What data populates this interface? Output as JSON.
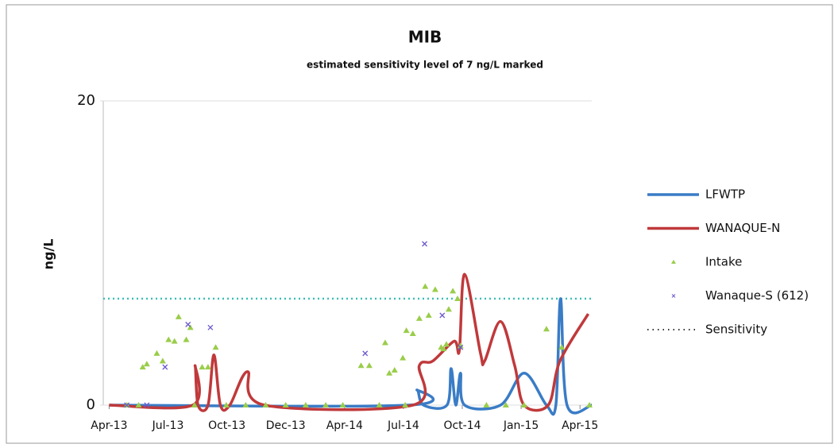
{
  "chart_data": {
    "type": "line",
    "title": "MIB",
    "subtitle": "estimated sensitivity level of 7 ng/L marked",
    "y_label": "ng/L",
    "xlim": [
      -0.1,
      8.2
    ],
    "xticks": [
      {
        "value": 0,
        "label": "Apr-13"
      },
      {
        "value": 1,
        "label": "Jul-13"
      },
      {
        "value": 2,
        "label": "Oct-13"
      },
      {
        "value": 3,
        "label": "Dec-13"
      },
      {
        "value": 4,
        "label": "Apr-14"
      },
      {
        "value": 5,
        "label": "Jul-14"
      },
      {
        "value": 6,
        "label": "Oct-14"
      },
      {
        "value": 7,
        "label": "Jan-15"
      },
      {
        "value": 8,
        "label": "Apr-15"
      }
    ],
    "ylim": [
      0,
      20
    ],
    "yticks": [
      0,
      20
    ],
    "grid": false,
    "legend": "right",
    "series": [
      {
        "name": "LFWTP",
        "mode": "line",
        "smooth": true,
        "color": "#3a7cc6",
        "x": [
          0,
          5.09,
          5.23,
          5.34,
          5.74,
          5.81,
          5.89,
          5.97,
          6.04,
          6.65,
          7.05,
          7.43,
          7.59,
          7.67,
          7.78,
          8.2
        ],
        "values": [
          0,
          0,
          1.0,
          0,
          0,
          2.4,
          0,
          2.1,
          0,
          0,
          2.1,
          0,
          0,
          7.0,
          0,
          0
        ]
      },
      {
        "name": "WANAQUE-N",
        "mode": "line",
        "smooth": true,
        "color": "#c0393b",
        "x": [
          0,
          1.42,
          1.46,
          1.51,
          1.68,
          1.78,
          1.89,
          2.05,
          2.35,
          2.64,
          5.16,
          5.27,
          5.5,
          5.86,
          5.95,
          6.04,
          6.31,
          6.38,
          6.65,
          6.89,
          7.05,
          7.46,
          7.66,
          8.14
        ],
        "values": [
          0,
          0,
          2.6,
          0,
          0,
          3.3,
          0,
          0,
          2.2,
          0,
          0,
          2.6,
          2.9,
          4.2,
          3.6,
          8.6,
          3.4,
          2.9,
          5.5,
          2.6,
          0,
          0,
          2.9,
          6.0
        ]
      },
      {
        "name": "Intake",
        "mode": "triangle",
        "color": "#9acd4a",
        "x": [
          0.57,
          0.64,
          0.81,
          0.91,
          1.01,
          1.11,
          1.18,
          1.31,
          1.38,
          1.58,
          1.68,
          1.81,
          0.3,
          0.5,
          4.28,
          4.42,
          4.69,
          4.76,
          4.85,
          4.99,
          5.05,
          5.16,
          5.27,
          5.37,
          5.43,
          5.54,
          5.64,
          5.68,
          5.73,
          5.77,
          5.84,
          5.92,
          5.97,
          1.45,
          1.99,
          2.32,
          2.66,
          3.0,
          3.34,
          3.68,
          3.97,
          4.59,
          5.03,
          6.41,
          6.74,
          7.05,
          7.43,
          7.69,
          8.16
        ],
        "values": [
          2.5,
          2.7,
          3.4,
          2.9,
          4.3,
          4.2,
          5.8,
          4.3,
          5.1,
          2.5,
          2.5,
          3.8,
          0,
          0,
          2.6,
          2.6,
          4.1,
          2.1,
          2.3,
          3.1,
          4.9,
          4.7,
          5.7,
          7.8,
          5.9,
          7.6,
          3.8,
          3.7,
          4.0,
          6.3,
          7.5,
          7.0,
          3.9,
          0,
          0,
          0,
          0,
          0,
          0,
          0,
          0,
          0,
          0,
          0,
          0,
          0,
          5.0,
          3.8,
          0
        ]
      },
      {
        "name": "Wanaque-S (612)",
        "mode": "x",
        "color": "#6a5acd",
        "x": [
          0.3,
          0.64,
          0.95,
          1.34,
          1.72,
          4.35,
          5.36,
          5.66,
          5.97
        ],
        "values": [
          0,
          0,
          2.5,
          5.3,
          5.1,
          3.4,
          10.6,
          5.9,
          3.8
        ]
      }
    ],
    "sensitivity": {
      "name": "Sensitivity",
      "value": 7,
      "color": "#3bbfb5"
    }
  }
}
